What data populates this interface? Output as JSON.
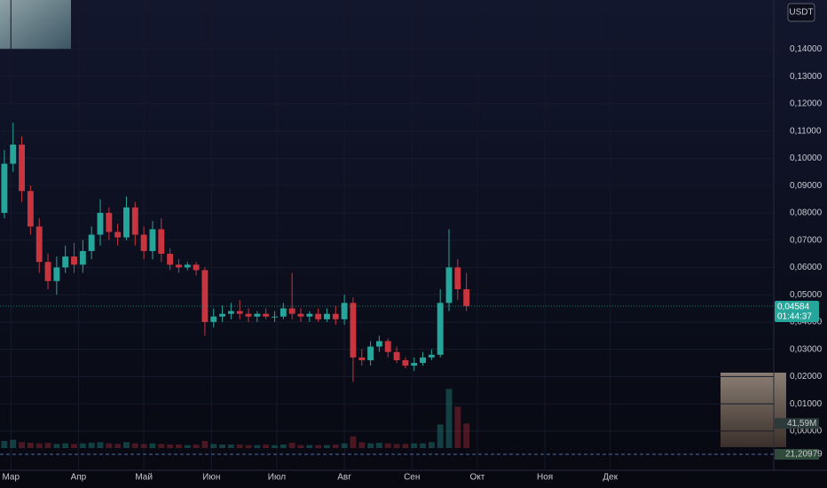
{
  "chart_data": {
    "type": "candlestick",
    "currency": "USDT",
    "x": [
      -3,
      1,
      5,
      9,
      13,
      17,
      21,
      25,
      29,
      33,
      37,
      41,
      45,
      49,
      53,
      57,
      61,
      65,
      69,
      73,
      77,
      81,
      85,
      89,
      93,
      97,
      101,
      105,
      109,
      113,
      117,
      121,
      125,
      129,
      133,
      137,
      141,
      145,
      149,
      153,
      157,
      161,
      165,
      169,
      173,
      177,
      181,
      185,
      189,
      193,
      197,
      201,
      205,
      209
    ],
    "open": [
      0.08,
      0.098,
      0.105,
      0.088,
      0.075,
      0.062,
      0.055,
      0.06,
      0.064,
      0.061,
      0.066,
      0.072,
      0.08,
      0.073,
      0.071,
      0.082,
      0.072,
      0.066,
      0.074,
      0.065,
      0.061,
      0.06,
      0.061,
      0.059,
      0.04,
      0.042,
      0.043,
      0.044,
      0.043,
      0.042,
      0.043,
      0.042,
      0.042,
      0.045,
      0.043,
      0.042,
      0.043,
      0.041,
      0.043,
      0.041,
      0.047,
      0.027,
      0.026,
      0.031,
      0.033,
      0.029,
      0.026,
      0.024,
      0.025,
      0.027,
      0.028,
      0.047,
      0.06,
      0.052
    ],
    "high": [
      0.103,
      0.113,
      0.108,
      0.09,
      0.078,
      0.065,
      0.064,
      0.068,
      0.069,
      0.07,
      0.075,
      0.085,
      0.082,
      0.076,
      0.086,
      0.084,
      0.075,
      0.077,
      0.078,
      0.067,
      0.063,
      0.062,
      0.062,
      0.06,
      0.045,
      0.046,
      0.047,
      0.048,
      0.045,
      0.044,
      0.045,
      0.044,
      0.047,
      0.058,
      0.045,
      0.044,
      0.045,
      0.045,
      0.046,
      0.05,
      0.049,
      0.03,
      0.033,
      0.035,
      0.034,
      0.031,
      0.027,
      0.027,
      0.029,
      0.03,
      0.052,
      0.074,
      0.063,
      0.058
    ],
    "low": [
      0.078,
      0.095,
      0.084,
      0.072,
      0.058,
      0.052,
      0.05,
      0.058,
      0.058,
      0.058,
      0.063,
      0.068,
      0.07,
      0.068,
      0.07,
      0.068,
      0.063,
      0.063,
      0.062,
      0.059,
      0.058,
      0.059,
      0.057,
      0.035,
      0.038,
      0.04,
      0.041,
      0.041,
      0.04,
      0.04,
      0.041,
      0.04,
      0.041,
      0.041,
      0.04,
      0.04,
      0.04,
      0.04,
      0.039,
      0.039,
      0.018,
      0.024,
      0.024,
      0.029,
      0.027,
      0.025,
      0.023,
      0.022,
      0.024,
      0.026,
      0.027,
      0.044,
      0.048,
      0.044
    ],
    "close": [
      0.098,
      0.105,
      0.088,
      0.075,
      0.062,
      0.055,
      0.06,
      0.064,
      0.061,
      0.066,
      0.072,
      0.08,
      0.073,
      0.071,
      0.082,
      0.072,
      0.066,
      0.074,
      0.065,
      0.061,
      0.06,
      0.061,
      0.059,
      0.04,
      0.042,
      0.043,
      0.044,
      0.043,
      0.042,
      0.043,
      0.042,
      0.042,
      0.045,
      0.043,
      0.042,
      0.043,
      0.041,
      0.043,
      0.041,
      0.047,
      0.027,
      0.026,
      0.031,
      0.033,
      0.029,
      0.026,
      0.024,
      0.025,
      0.027,
      0.028,
      0.047,
      0.06,
      0.052,
      0.04584
    ],
    "volume": [
      12,
      14,
      10,
      9,
      8,
      9,
      7,
      8,
      7,
      8,
      9,
      10,
      8,
      7,
      10,
      8,
      7,
      8,
      7,
      6,
      6,
      5,
      6,
      12,
      7,
      6,
      6,
      6,
      5,
      5,
      6,
      5,
      6,
      9,
      5,
      5,
      5,
      5,
      6,
      8,
      20,
      10,
      8,
      9,
      8,
      7,
      7,
      8,
      8,
      10,
      40,
      100,
      70,
      41.59
    ],
    "volume_last_label": {
      "value": 41.59,
      "label": "41,59M"
    },
    "volume_lim": [
      0,
      120
    ],
    "indicator_value": {
      "value": 21.20979,
      "label": "21,20979"
    },
    "last_price": {
      "value": 0.04584,
      "label": "0,04584"
    },
    "countdown": "01:44:37",
    "xlim": [
      -5,
      350
    ],
    "xticks": [
      {
        "value": 0,
        "label": "Мар"
      },
      {
        "value": 31,
        "label": "Апр"
      },
      {
        "value": 61,
        "label": "Май"
      },
      {
        "value": 92,
        "label": "Июн"
      },
      {
        "value": 122,
        "label": "Июл"
      },
      {
        "value": 153,
        "label": "Авг"
      },
      {
        "value": 184,
        "label": "Сен"
      },
      {
        "value": 214,
        "label": "Окт"
      },
      {
        "value": 245,
        "label": "Ноя"
      },
      {
        "value": 275,
        "label": "Дек"
      }
    ],
    "ylim": [
      -0.0062,
      0.158
    ],
    "yticks": [
      {
        "value": 0,
        "label": "0,00000"
      },
      {
        "value": 0.01,
        "label": "0,01000"
      },
      {
        "value": 0.02,
        "label": "0,02000"
      },
      {
        "value": 0.03,
        "label": "0,03000"
      },
      {
        "value": 0.04,
        "label": "0,04000"
      },
      {
        "value": 0.05,
        "label": "0,05000"
      },
      {
        "value": 0.06,
        "label": "0,06000"
      },
      {
        "value": 0.07,
        "label": "0,07000"
      },
      {
        "value": 0.08,
        "label": "0,08000"
      },
      {
        "value": 0.09,
        "label": "0,09000"
      },
      {
        "value": 0.1,
        "label": "0,10000"
      },
      {
        "value": 0.11,
        "label": "0,11000"
      },
      {
        "value": 0.12,
        "label": "0,12000"
      },
      {
        "value": 0.13,
        "label": "0,13000"
      },
      {
        "value": 0.14,
        "label": "0,14000"
      }
    ],
    "up_color": "#26a69a",
    "down_color": "#c9353f",
    "grid": true
  }
}
